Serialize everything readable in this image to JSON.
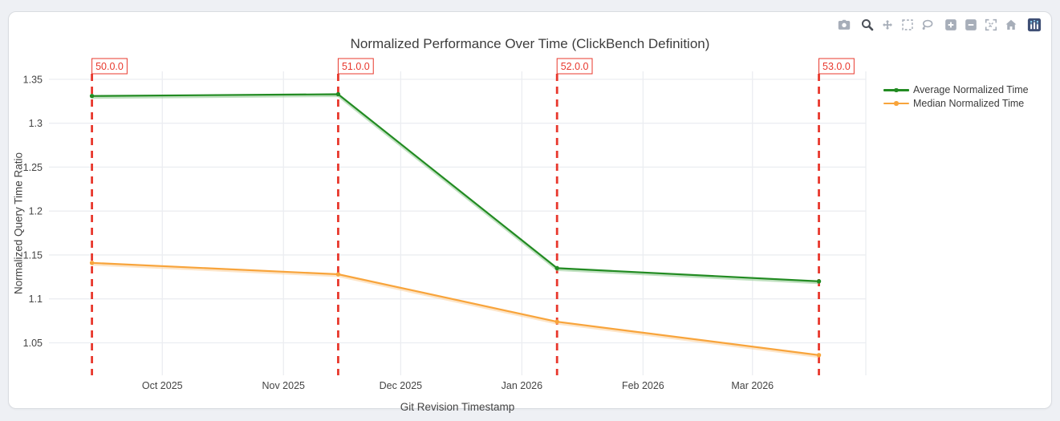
{
  "modebar": {
    "groups": [
      [
        "camera"
      ],
      [
        "zoom",
        "pan",
        "box-select",
        "lasso"
      ],
      [
        "zoom-in",
        "zoom-out",
        "autoscale",
        "reset-home"
      ],
      [
        "plotly-logo"
      ]
    ],
    "active_icon": "zoom",
    "icon_color": "#a7aeb9",
    "active_color": "#4b5058",
    "logo_bg": "#3f4f75"
  },
  "chart_data": {
    "type": "line",
    "title": "Normalized Performance Over Time (ClickBench Definition)",
    "xlabel": "Git Revision Timestamp",
    "ylabel": "Normalized Query Time Ratio",
    "x_range": [
      "2025-09-02",
      "2026-03-30"
    ],
    "ylim": [
      1.013,
      1.359
    ],
    "grid": true,
    "legend_position": "right",
    "yticks": [
      {
        "value": 1.05,
        "label": "1.05"
      },
      {
        "value": 1.1,
        "label": "1.1"
      },
      {
        "value": 1.15,
        "label": "1.15"
      },
      {
        "value": 1.2,
        "label": "1.2"
      },
      {
        "value": 1.25,
        "label": "1.25"
      },
      {
        "value": 1.3,
        "label": "1.3"
      },
      {
        "value": 1.35,
        "label": "1.35"
      }
    ],
    "xticks": [
      {
        "date": "2025-10-01",
        "label": "Oct 2025"
      },
      {
        "date": "2025-11-01",
        "label": "Nov 2025"
      },
      {
        "date": "2025-12-01",
        "label": "Dec 2025"
      },
      {
        "date": "2026-01-01",
        "label": "Jan 2026"
      },
      {
        "date": "2026-02-01",
        "label": "Feb 2026"
      },
      {
        "date": "2026-03-01",
        "label": "Mar 2026"
      }
    ],
    "series": [
      {
        "name": "Average Normalized Time",
        "color": "#228b22",
        "shadow_color": "#8ec98e",
        "points": [
          {
            "x": "2025-09-13",
            "y": 1.331
          },
          {
            "x": "2025-11-15",
            "y": 1.333
          },
          {
            "x": "2026-01-10",
            "y": 1.135
          },
          {
            "x": "2026-03-18",
            "y": 1.12
          }
        ]
      },
      {
        "name": "Median Normalized Time",
        "color": "#f8a43b",
        "shadow_color": "#fbcf9a",
        "points": [
          {
            "x": "2025-09-13",
            "y": 1.141
          },
          {
            "x": "2025-11-15",
            "y": 1.128
          },
          {
            "x": "2026-01-10",
            "y": 1.074
          },
          {
            "x": "2026-03-18",
            "y": 1.036
          }
        ]
      }
    ],
    "annotations": [
      {
        "label": "50.0.0",
        "x": "2025-09-13"
      },
      {
        "label": "51.0.0",
        "x": "2025-11-15"
      },
      {
        "label": "52.0.0",
        "x": "2026-01-10"
      },
      {
        "label": "53.0.0",
        "x": "2026-03-18"
      }
    ],
    "vline_color": "#e8382d",
    "grid_color": "#ebedf1",
    "tick_color": "#444444"
  }
}
